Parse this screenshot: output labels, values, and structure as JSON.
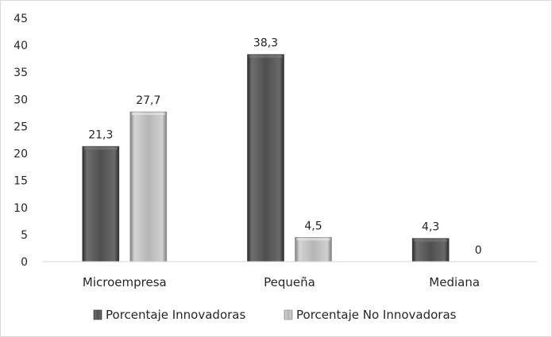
{
  "chart_data": {
    "type": "bar",
    "categories": [
      "Microempresa",
      "Pequeña",
      "Mediana"
    ],
    "series": [
      {
        "name": "Porcentaje Innovadoras",
        "values": [
          21.3,
          38.3,
          4.3
        ],
        "labels": [
          "21,3",
          "38,3",
          "4,3"
        ],
        "color": "#4d4d4d"
      },
      {
        "name": "Porcentaje No Innovadoras",
        "values": [
          27.7,
          4.5,
          0
        ],
        "labels": [
          "27,7",
          "4,5",
          "0"
        ],
        "color": "#b3b3b3"
      }
    ],
    "y_ticks": [
      "0",
      "5",
      "10",
      "15",
      "20",
      "25",
      "30",
      "35",
      "40",
      "45"
    ],
    "ylim": [
      0,
      45
    ],
    "grid": false,
    "legend_position": "bottom"
  }
}
